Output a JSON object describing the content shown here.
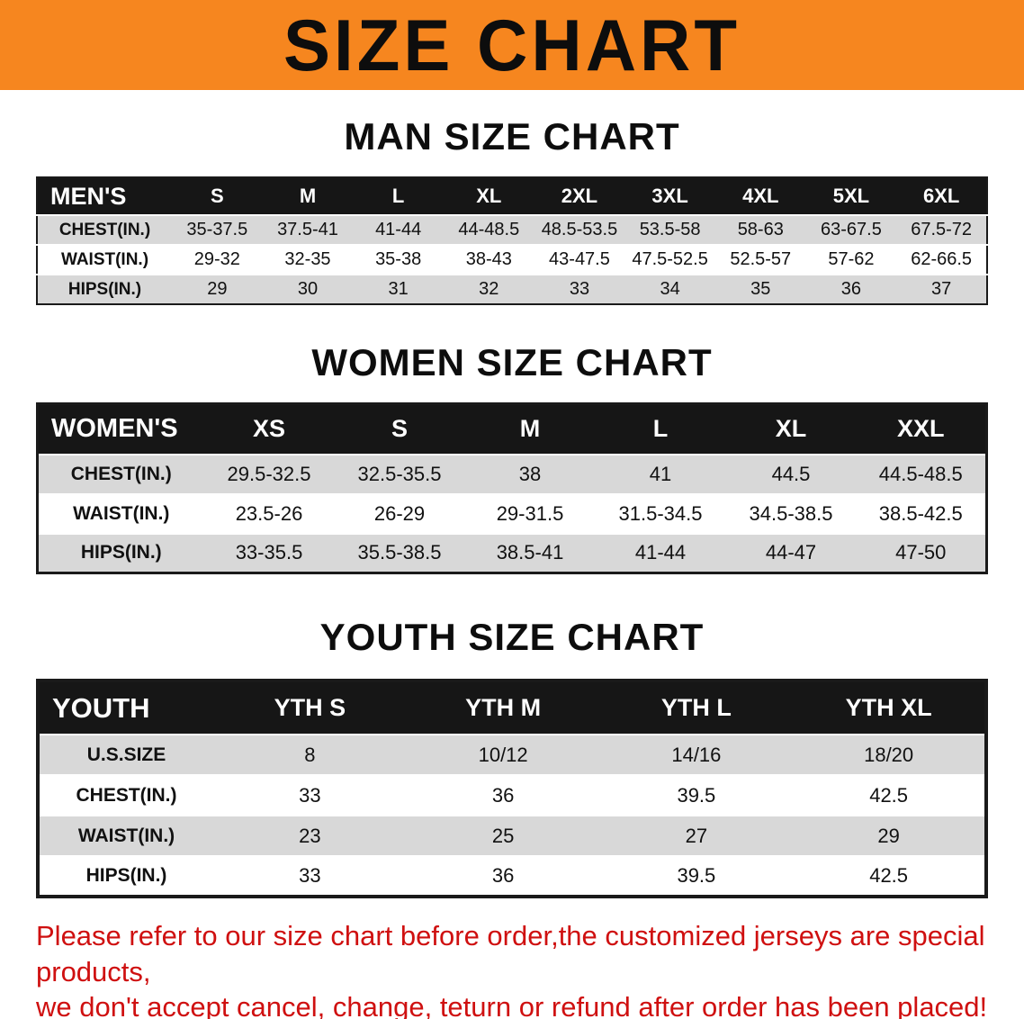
{
  "banner": {
    "title": "SIZE CHART"
  },
  "colors": {
    "banner_bg": "#f6861f",
    "table_header_bg": "#161616",
    "row_stripe": "#d8d8d8",
    "note_red": "#cf1010"
  },
  "men": {
    "heading": "MAN SIZE CHART",
    "table": {
      "header": [
        "MEN'S",
        "S",
        "M",
        "L",
        "XL",
        "2XL",
        "3XL",
        "4XL",
        "5XL",
        "6XL"
      ],
      "rows": [
        [
          "CHEST(IN.)",
          "35-37.5",
          "37.5-41",
          "41-44",
          "44-48.5",
          "48.5-53.5",
          "53.5-58",
          "58-63",
          "63-67.5",
          "67.5-72"
        ],
        [
          "WAIST(IN.)",
          "29-32",
          "32-35",
          "35-38",
          "38-43",
          "43-47.5",
          "47.5-52.5",
          "52.5-57",
          "57-62",
          "62-66.5"
        ],
        [
          "HIPS(IN.)",
          "29",
          "30",
          "31",
          "32",
          "33",
          "34",
          "35",
          "36",
          "37"
        ]
      ]
    }
  },
  "women": {
    "heading": "WOMEN SIZE CHART",
    "table": {
      "header": [
        "WOMEN'S",
        "XS",
        "S",
        "M",
        "L",
        "XL",
        "XXL"
      ],
      "rows": [
        [
          "CHEST(IN.)",
          "29.5-32.5",
          "32.5-35.5",
          "38",
          "41",
          "44.5",
          "44.5-48.5"
        ],
        [
          "WAIST(IN.)",
          "23.5-26",
          "26-29",
          "29-31.5",
          "31.5-34.5",
          "34.5-38.5",
          "38.5-42.5"
        ],
        [
          "HIPS(IN.)",
          "33-35.5",
          "35.5-38.5",
          "38.5-41",
          "41-44",
          "44-47",
          "47-50"
        ]
      ]
    }
  },
  "youth": {
    "heading": "YOUTH SIZE CHART",
    "table": {
      "header": [
        "YOUTH",
        "YTH S",
        "YTH M",
        "YTH L",
        "YTH XL"
      ],
      "rows": [
        [
          "U.S.SIZE",
          "8",
          "10/12",
          "14/16",
          "18/20"
        ],
        [
          "CHEST(IN.)",
          "33",
          "36",
          "39.5",
          "42.5"
        ],
        [
          "WAIST(IN.)",
          "23",
          "25",
          "27",
          "29"
        ],
        [
          "HIPS(IN.)",
          "33",
          "36",
          "39.5",
          "42.5"
        ]
      ]
    }
  },
  "note": {
    "line1": "Please refer to our size chart before order,the customized jerseys are special products,",
    "line2": "we don't accept cancel, change, teturn or refund after order has been placed!"
  }
}
